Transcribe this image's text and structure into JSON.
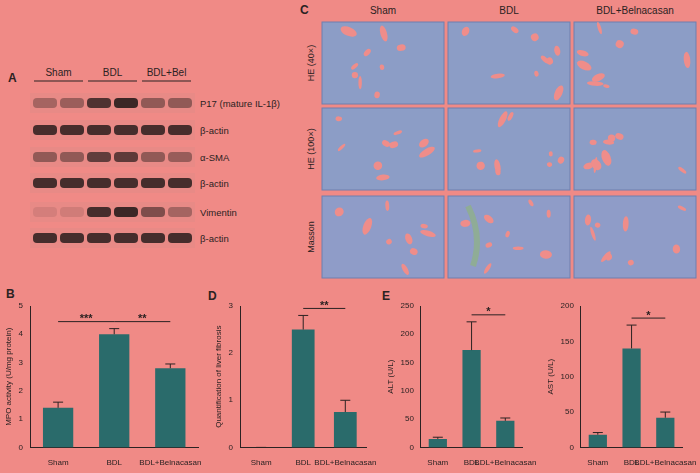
{
  "panel_labels": [
    "A",
    "B",
    "C",
    "D",
    "E"
  ],
  "blot": {
    "groups": [
      "Sham",
      "BDL",
      "BDL+Bel"
    ],
    "bands": [
      "P17 (mature IL-1β)",
      "β-actin",
      "α-SMA",
      "β-actin",
      "Vimentin",
      "β-actin"
    ]
  },
  "histology": {
    "columns": [
      "Sham",
      "BDL",
      "BDL+Belnacasan"
    ],
    "rows": [
      "HE (40×)",
      "HE (100×)",
      "Masson"
    ]
  },
  "chart_data": [
    {
      "type": "bar",
      "categories": [
        "Sham",
        "BDL",
        "BDL+Belnacasan"
      ],
      "values": [
        1.4,
        4.0,
        2.8
      ],
      "errors": [
        0.2,
        0.2,
        0.15
      ],
      "color": "#2a6b6b",
      "y_label": "MPO activity (U/mg protein)",
      "ylim": [
        0,
        5
      ],
      "yticks": [
        0,
        1,
        2,
        3,
        4,
        5
      ],
      "grid": false,
      "annotations": [
        {
          "text": "***",
          "from": "Sham",
          "to": "BDL"
        },
        {
          "text": "**",
          "from": "BDL",
          "to": "BDL+Belnacasan"
        }
      ]
    },
    {
      "type": "bar",
      "categories": [
        "Sham",
        "BDL",
        "BDL+Belnacasan"
      ],
      "values": [
        0,
        2.5,
        0.75
      ],
      "errors": [
        0,
        0.3,
        0.25
      ],
      "color": "#2a6b6b",
      "y_label": "Quantification of liver fibrosis",
      "ylim": [
        0,
        3
      ],
      "yticks": [
        0,
        1,
        2,
        3
      ],
      "grid": false,
      "annotations": [
        {
          "text": "**",
          "from": "BDL",
          "to": "BDL+Belnacasan"
        }
      ]
    },
    {
      "type": "bar",
      "categories": [
        "Sham",
        "BDL",
        "BDL+Belnacasan"
      ],
      "values": [
        15,
        172,
        47
      ],
      "errors": [
        3,
        50,
        5
      ],
      "color": "#2a6b6b",
      "y_label": "ALT (U/L)",
      "ylim": [
        0,
        250
      ],
      "yticks": [
        0,
        50,
        100,
        150,
        200,
        250
      ],
      "grid": false,
      "annotations": [
        {
          "text": "*",
          "from": "BDL",
          "to": "BDL+Belnacasan"
        }
      ]
    },
    {
      "type": "bar",
      "categories": [
        "Sham",
        "BDL",
        "BDL+Belnacasan"
      ],
      "values": [
        18,
        140,
        42
      ],
      "errors": [
        3,
        33,
        8
      ],
      "color": "#2a6b6b",
      "y_label": "AST (U/L)",
      "ylim": [
        0,
        200
      ],
      "yticks": [
        0,
        50,
        100,
        150,
        200
      ],
      "grid": false,
      "annotations": [
        {
          "text": "*",
          "from": "BDL",
          "to": "BDL+Belnacasan"
        }
      ]
    }
  ]
}
